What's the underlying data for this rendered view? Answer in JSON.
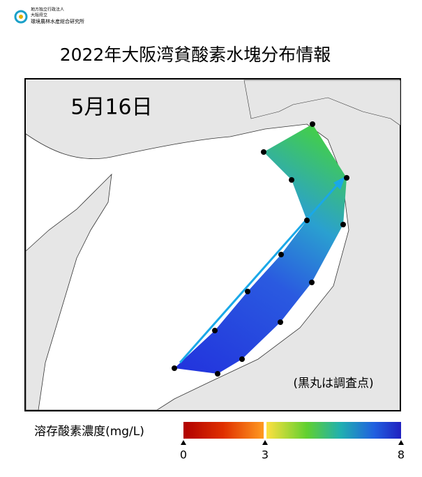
{
  "header": {
    "org_lines": [
      "地方独立行政法人",
      "大阪府立",
      "環境農林水産総合研究所"
    ],
    "title": "2022年大阪湾貧酸素水塊分布情報"
  },
  "map": {
    "date": "5月16日",
    "note": "(黒丸は調査点)"
  },
  "colorbar": {
    "label": "溶存酸素濃度(mg/L)",
    "range": [
      0,
      8
    ],
    "ticks": [
      0,
      3,
      8
    ]
  }
}
